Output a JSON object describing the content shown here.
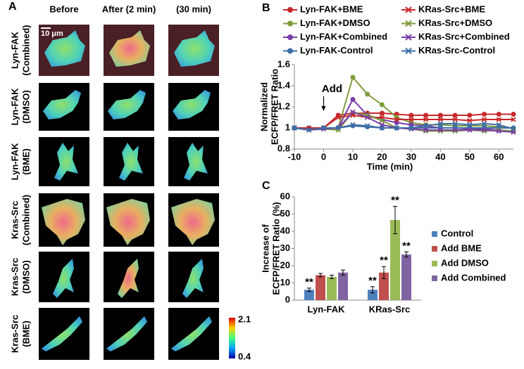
{
  "panel_a": {
    "label": "A",
    "columns": [
      "Before",
      "After (2 min)",
      "(30 min)"
    ],
    "rows": [
      [
        "Lyn-FAK",
        "(Combined)"
      ],
      [
        "Lyn-FAK",
        "(DMSO)"
      ],
      [
        "Lyn-FAK",
        "(BME)"
      ],
      [
        "Kras-Src",
        "(Combined)"
      ],
      [
        "Kras-Src",
        "(DMSO)"
      ],
      [
        "Kras-Src",
        "(BME)"
      ]
    ],
    "scale_bar": "10 μm",
    "colorbar": {
      "max": 2.1,
      "min": 0.4
    }
  },
  "chart_data": [
    {
      "type": "line",
      "panel": "B",
      "xlabel": "Time (min)",
      "ylabel": [
        "Normalized",
        "ECFP/FRET Ratio"
      ],
      "annotations": [
        {
          "text": "Add",
          "x": 0
        }
      ],
      "x": [
        -10,
        -5,
        0,
        5,
        10,
        15,
        20,
        25,
        30,
        35,
        40,
        45,
        50,
        55,
        60,
        65
      ],
      "xlim": [
        -10,
        65
      ],
      "xticks": [
        -10,
        0,
        10,
        20,
        30,
        40,
        50,
        60
      ],
      "ylim": [
        0.8,
        1.6
      ],
      "yticks": [
        0.8,
        1,
        1.2,
        1.4,
        1.6
      ],
      "series": [
        {
          "name": "Lyn-FAK+BME",
          "color": "#c8282a",
          "marker": "circle",
          "values": [
            1,
            0.99,
            1,
            1.12,
            1.14,
            1.14,
            1.14,
            1.13,
            1.12,
            1.12,
            1.12,
            1.12,
            1.12,
            1.13,
            1.13,
            1.13
          ]
        },
        {
          "name": "Lyn-FAK+DMSO",
          "color": "#7f9c3c",
          "marker": "circle",
          "values": [
            1,
            0.99,
            1,
            1,
            1.48,
            1.32,
            1.22,
            1.1,
            1.05,
            1.03,
            1.03,
            1.02,
            1.02,
            1.02,
            1.01,
            1
          ]
        },
        {
          "name": "Lyn-FAK+Combined",
          "color": "#7a3ea6",
          "marker": "circle",
          "values": [
            1,
            0.99,
            1,
            1,
            1.27,
            1.12,
            1.08,
            1.05,
            1.03,
            1.02,
            1,
            1,
            0.99,
            0.99,
            0.98,
            0.97
          ]
        },
        {
          "name": "Lyn-FAK-Control",
          "color": "#3e6ea6",
          "marker": "circle",
          "values": [
            1,
            1,
            1,
            1,
            1.02,
            1.01,
            1,
            1,
            1,
            1,
            1,
            1,
            1,
            1,
            1,
            1
          ]
        },
        {
          "name": "KRas-Src+BME",
          "color": "#c8282a",
          "marker": "x",
          "values": [
            1,
            1,
            1,
            1.1,
            1.12,
            1.1,
            1.1,
            1.08,
            1.08,
            1.08,
            1.08,
            1.08,
            1.07,
            1.08,
            1.08,
            1.08
          ]
        },
        {
          "name": "KRas-Src+DMSO",
          "color": "#7f9c3c",
          "marker": "x",
          "values": [
            1,
            0.98,
            0.99,
            0.98,
            1.15,
            1.12,
            1.07,
            1,
            0.99,
            0.97,
            0.97,
            0.97,
            0.98,
            0.97,
            0.98,
            0.97
          ]
        },
        {
          "name": "KRas-Src+Combined",
          "color": "#7a3ea6",
          "marker": "x",
          "values": [
            1,
            0.98,
            0.99,
            1,
            1.15,
            1.1,
            1.03,
            1,
            0.99,
            0.98,
            0.98,
            0.98,
            0.98,
            0.98,
            0.97,
            0.96
          ]
        },
        {
          "name": "KRas-Src-Control",
          "color": "#3e6ea6",
          "marker": "x",
          "values": [
            1,
            0.98,
            1,
            1,
            1.03,
            1.02,
            1,
            1,
            1,
            1.02,
            1.04,
            1.04,
            1.03,
            1.04,
            1.03,
            0.99
          ]
        }
      ]
    },
    {
      "type": "bar",
      "panel": "C",
      "ylabel": [
        "Increase of",
        "ECFP/FRET Ratio (%)"
      ],
      "categories": [
        "Lyn-FAK",
        "KRas-Src"
      ],
      "ylim": [
        0,
        60
      ],
      "yticks": [
        0,
        10,
        20,
        30,
        40,
        50,
        60
      ],
      "series": [
        {
          "name": "Control",
          "color": "#4f81bd",
          "values": [
            6,
            6
          ],
          "errors": [
            1,
            1.8
          ],
          "significance": [
            "**",
            "**"
          ]
        },
        {
          "name": "Add BME",
          "color": "#c0504d",
          "values": [
            14.5,
            16
          ],
          "errors": [
            1,
            3.5
          ],
          "significance": [
            null,
            "**"
          ]
        },
        {
          "name": "Add DMSO",
          "color": "#9bbb59",
          "values": [
            13.5,
            46.5
          ],
          "errors": [
            1,
            8
          ],
          "significance": [
            null,
            "**"
          ]
        },
        {
          "name": "Add Combined",
          "color": "#8064a2",
          "values": [
            16,
            26.5
          ],
          "errors": [
            1.5,
            1.5
          ],
          "significance": [
            null,
            "**"
          ]
        }
      ]
    }
  ]
}
